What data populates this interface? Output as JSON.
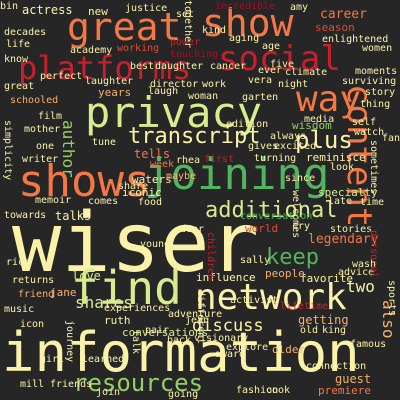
{
  "colors": {
    "background": "#262626",
    "cream": "#fbf2aa",
    "light_green": "#d6ec8e",
    "mid_green": "#93cf63",
    "green": "#52b45e",
    "orange": "#f47844",
    "dark_orange": "#dd4c32",
    "red": "#c7202c",
    "deep_red": "#a50d26",
    "peach": "#f7b16c"
  },
  "words": [
    {
      "text": "wiser",
      "color": "cream"
    },
    {
      "text": "information",
      "color": "cream"
    },
    {
      "text": "network",
      "color": "cream"
    },
    {
      "text": "find",
      "color": "light_green"
    },
    {
      "text": "privacy",
      "color": "light_green"
    },
    {
      "text": "joining",
      "color": "green"
    },
    {
      "text": "great",
      "color": "orange"
    },
    {
      "text": "show",
      "color": "orange"
    },
    {
      "text": "shows",
      "color": "orange"
    },
    {
      "text": "social",
      "color": "red"
    },
    {
      "text": "platforms",
      "color": "red"
    },
    {
      "text": "content",
      "color": "orange"
    },
    {
      "text": "way",
      "color": "orange"
    },
    {
      "text": "resources",
      "color": "mid_green"
    },
    {
      "text": "additional",
      "color": "light_green"
    },
    {
      "text": "transcript",
      "color": "cream"
    },
    {
      "text": "keep",
      "color": "green"
    },
    {
      "text": "plus",
      "color": "cream"
    },
    {
      "text": "two",
      "color": "cream"
    },
    {
      "text": "discuss",
      "color": "cream"
    },
    {
      "text": "shares",
      "color": "light_green"
    },
    {
      "text": "also",
      "color": "peach"
    },
    {
      "text": "legendary",
      "color": "orange"
    },
    {
      "text": "career",
      "color": "orange"
    },
    {
      "text": "season",
      "color": "dark_orange"
    },
    {
      "text": "author",
      "color": "mid_green"
    },
    {
      "text": "years",
      "color": "peach"
    },
    {
      "text": "love",
      "color": "light_green"
    },
    {
      "text": "talks",
      "color": "cream"
    },
    {
      "text": "influence",
      "color": "cream"
    },
    {
      "text": "favorite",
      "color": "cream"
    },
    {
      "text": "conversations",
      "color": "light_green"
    },
    {
      "text": "wisdom",
      "color": "mid_green"
    },
    {
      "text": "actress",
      "color": "cream"
    },
    {
      "text": "new",
      "color": "cream"
    },
    {
      "text": "getting",
      "color": "peach"
    },
    {
      "text": "world",
      "color": "dark_orange"
    },
    {
      "text": "iconic",
      "color": "cream"
    },
    {
      "text": "tells",
      "color": "orange"
    },
    {
      "text": "laugh",
      "color": "cream"
    },
    {
      "text": "reminisce",
      "color": "cream"
    },
    {
      "text": "people",
      "color": "peach"
    },
    {
      "text": "waters",
      "color": "cream"
    },
    {
      "text": "advice",
      "color": "cream"
    },
    {
      "text": "guest",
      "color": "peach"
    },
    {
      "text": "premiere",
      "color": "orange"
    },
    {
      "text": "older",
      "color": "peach"
    },
    {
      "text": "ruth",
      "color": "cream"
    },
    {
      "text": "jane",
      "color": "peach"
    },
    {
      "text": "jean",
      "color": "cream"
    },
    {
      "text": "week",
      "color": "orange"
    },
    {
      "text": "specialty",
      "color": "light_green"
    },
    {
      "text": "fashion",
      "color": "cream"
    },
    {
      "text": "mill",
      "color": "cream"
    },
    {
      "text": "old",
      "color": "cream"
    },
    {
      "text": "story",
      "color": "cream"
    },
    {
      "text": "women",
      "color": "cream"
    },
    {
      "text": "garten",
      "color": "cream"
    },
    {
      "text": "share",
      "color": "cream"
    },
    {
      "text": "work",
      "color": "cream"
    },
    {
      "text": "working",
      "color": "dark_orange"
    },
    {
      "text": "kind",
      "color": "cream"
    },
    {
      "text": "aging",
      "color": "cream"
    },
    {
      "text": "power",
      "color": "red"
    },
    {
      "text": "age",
      "color": "cream"
    },
    {
      "text": "enlightened",
      "color": "cream"
    },
    {
      "text": "decades",
      "color": "cream"
    },
    {
      "text": "academy",
      "color": "cream"
    },
    {
      "text": "vera",
      "color": "cream"
    },
    {
      "text": "night",
      "color": "cream"
    },
    {
      "text": "woman",
      "color": "cream"
    },
    {
      "text": "director",
      "color": "cream"
    },
    {
      "text": "schooled",
      "color": "peach"
    },
    {
      "text": "mother",
      "color": "cream"
    },
    {
      "text": "writer",
      "color": "cream"
    },
    {
      "text": "towards",
      "color": "cream"
    },
    {
      "text": "friend",
      "color": "peach"
    },
    {
      "text": "music",
      "color": "cream"
    },
    {
      "text": "icon",
      "color": "cream"
    },
    {
      "text": "first",
      "color": "red"
    },
    {
      "text": "rhea",
      "color": "cream"
    },
    {
      "text": "since",
      "color": "cream"
    },
    {
      "text": "welcomes",
      "color": "cream"
    },
    {
      "text": "maybe",
      "color": "peach"
    },
    {
      "text": "always",
      "color": "cream"
    },
    {
      "text": "gives",
      "color": "cream"
    },
    {
      "text": "excited",
      "color": "cream"
    },
    {
      "text": "turning",
      "color": "cream"
    },
    {
      "text": "set",
      "color": "cream"
    },
    {
      "text": "justice",
      "color": "cream"
    },
    {
      "text": "incredible",
      "color": "deep_red"
    },
    {
      "text": "amy",
      "color": "cream"
    },
    {
      "text": "thing",
      "color": "cream"
    },
    {
      "text": "fan",
      "color": "cream"
    },
    {
      "text": "sports",
      "color": "cream"
    },
    {
      "text": "lifetime",
      "color": "red"
    },
    {
      "text": "learned",
      "color": "cream"
    },
    {
      "text": "visionary",
      "color": "cream"
    },
    {
      "text": "pair",
      "color": "cream"
    },
    {
      "text": "back",
      "color": "cream"
    },
    {
      "text": "experiences",
      "color": "cream"
    },
    {
      "text": "adventure",
      "color": "cream"
    },
    {
      "text": "cook",
      "color": "cream"
    },
    {
      "text": "famous",
      "color": "cream"
    },
    {
      "text": "simplicity",
      "color": "cream"
    },
    {
      "text": "cry",
      "color": "cream"
    },
    {
      "text": "late",
      "color": "cream"
    },
    {
      "text": "returns",
      "color": "cream"
    },
    {
      "text": "award",
      "color": "cream"
    },
    {
      "text": "five",
      "color": "cream"
    },
    {
      "text": "moments",
      "color": "cream"
    },
    {
      "text": "surviving",
      "color": "cream"
    },
    {
      "text": "climate",
      "color": "cream"
    },
    {
      "text": "touching",
      "color": "deep_red"
    },
    {
      "text": "together",
      "color": "cream"
    },
    {
      "text": "life",
      "color": "cream"
    },
    {
      "text": "watch",
      "color": "cream"
    },
    {
      "text": "media",
      "color": "cream"
    },
    {
      "text": "dear",
      "color": "cream"
    },
    {
      "text": "stories",
      "color": "cream"
    },
    {
      "text": "know",
      "color": "cream"
    },
    {
      "text": "sally",
      "color": "cream"
    },
    {
      "text": "young",
      "color": "cream"
    },
    {
      "text": "children",
      "color": "red"
    },
    {
      "text": "activist",
      "color": "cream"
    },
    {
      "text": "look",
      "color": "cream"
    },
    {
      "text": "tune",
      "color": "cream"
    },
    {
      "text": "going",
      "color": "cream"
    },
    {
      "text": "personal",
      "color": "red"
    },
    {
      "text": "bin",
      "color": "cream"
    },
    {
      "text": "different",
      "color": "cream"
    },
    {
      "text": "conversation",
      "color": "green"
    },
    {
      "text": "journey",
      "color": "cream"
    },
    {
      "text": "king",
      "color": "cream"
    },
    {
      "text": "comes",
      "color": "cream"
    },
    {
      "text": "laughter",
      "color": "cream"
    },
    {
      "text": "self",
      "color": "cream"
    },
    {
      "text": "memoir",
      "color": "cream"
    },
    {
      "text": "wash",
      "color": "cream"
    },
    {
      "text": "food",
      "color": "cream"
    },
    {
      "text": "sometimes",
      "color": "cream"
    },
    {
      "text": "explore",
      "color": "cream"
    },
    {
      "text": "talk",
      "color": "cream"
    },
    {
      "text": "connection",
      "color": "cream"
    },
    {
      "text": "perfect",
      "color": "cream"
    },
    {
      "text": "great",
      "color": "cream"
    },
    {
      "text": "cancer",
      "color": "cream"
    },
    {
      "text": "daughter",
      "color": "cream"
    },
    {
      "text": "best",
      "color": "cream"
    },
    {
      "text": "ever",
      "color": "cream"
    },
    {
      "text": "film",
      "color": "cream"
    },
    {
      "text": "one",
      "color": "cream"
    },
    {
      "text": "rich",
      "color": "cream"
    },
    {
      "text": "time",
      "color": "cream"
    },
    {
      "text": "girl",
      "color": "cream"
    },
    {
      "text": "edition",
      "color": "cream"
    },
    {
      "text": "join",
      "color": "cream"
    },
    {
      "text": "friends",
      "color": "cream"
    },
    {
      "text": "mill",
      "color": "cream"
    }
  ]
}
